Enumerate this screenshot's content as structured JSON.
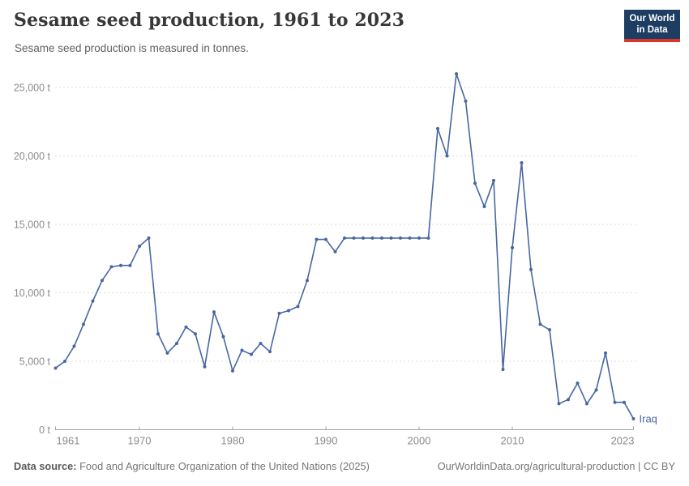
{
  "header": {
    "title": "Sesame seed production, 1961 to 2023",
    "subtitle": "Sesame seed production is measured in tonnes.",
    "logo": {
      "line1": "Our World",
      "line2": "in Data"
    }
  },
  "chart_data": {
    "type": "line",
    "title": "Sesame seed production, 1961 to 2023",
    "ylabel": "",
    "xlabel": "",
    "unit": "tonnes",
    "grid": "horizontal-dashed",
    "legend_position": "end-of-line-label",
    "ylim": [
      0,
      26000
    ],
    "y_ticks": [
      0,
      5000,
      10000,
      15000,
      20000,
      25000
    ],
    "y_tick_labels": [
      "0 t",
      "5,000 t",
      "10,000 t",
      "15,000 t",
      "20,000 t",
      "25,000 t"
    ],
    "x_ticks": [
      1961,
      1970,
      1980,
      1990,
      2000,
      2010,
      2023
    ],
    "x_tick_labels": [
      "1961",
      "1970",
      "1980",
      "1990",
      "2000",
      "2010",
      "2023"
    ],
    "x": [
      1961,
      1962,
      1963,
      1964,
      1965,
      1966,
      1967,
      1968,
      1969,
      1970,
      1971,
      1972,
      1973,
      1974,
      1975,
      1976,
      1977,
      1978,
      1979,
      1980,
      1981,
      1982,
      1983,
      1984,
      1985,
      1986,
      1987,
      1988,
      1989,
      1990,
      1991,
      1992,
      1993,
      1994,
      1995,
      1996,
      1997,
      1998,
      1999,
      2000,
      2001,
      2002,
      2003,
      2004,
      2005,
      2006,
      2007,
      2008,
      2009,
      2010,
      2011,
      2012,
      2013,
      2014,
      2015,
      2016,
      2017,
      2018,
      2019,
      2020,
      2021,
      2022,
      2023
    ],
    "series": [
      {
        "name": "Iraq",
        "color": "#4767a2",
        "values": [
          4500,
          5000,
          6100,
          7700,
          9400,
          10900,
          11900,
          12000,
          12000,
          13400,
          14000,
          7000,
          5600,
          6300,
          7500,
          7000,
          4600,
          8600,
          6800,
          4300,
          5800,
          5500,
          6300,
          5700,
          8500,
          8700,
          9000,
          10900,
          13900,
          13900,
          13000,
          14000,
          14000,
          14000,
          14000,
          14000,
          14000,
          14000,
          14000,
          14000,
          14000,
          22000,
          20000,
          26000,
          24000,
          18000,
          16300,
          18200,
          4400,
          13300,
          19500,
          11700,
          7700,
          7300,
          1900,
          2200,
          3400,
          1900,
          2900,
          5600,
          2000,
          2000,
          800
        ]
      }
    ]
  },
  "footer": {
    "source_label": "Data source:",
    "source_text": " Food and Agriculture Organization of the United Nations (2025)",
    "right_text": "OurWorldinData.org/agricultural-production | CC BY"
  },
  "colors": {
    "line": "#4767a2",
    "grid": "#dcdcdc",
    "axis": "#a5a5a5",
    "tick_label": "#8b8b8b",
    "title": "#383838",
    "subtitle": "#616161",
    "logo_bg": "#1d3d63",
    "logo_red": "#d8352b"
  }
}
